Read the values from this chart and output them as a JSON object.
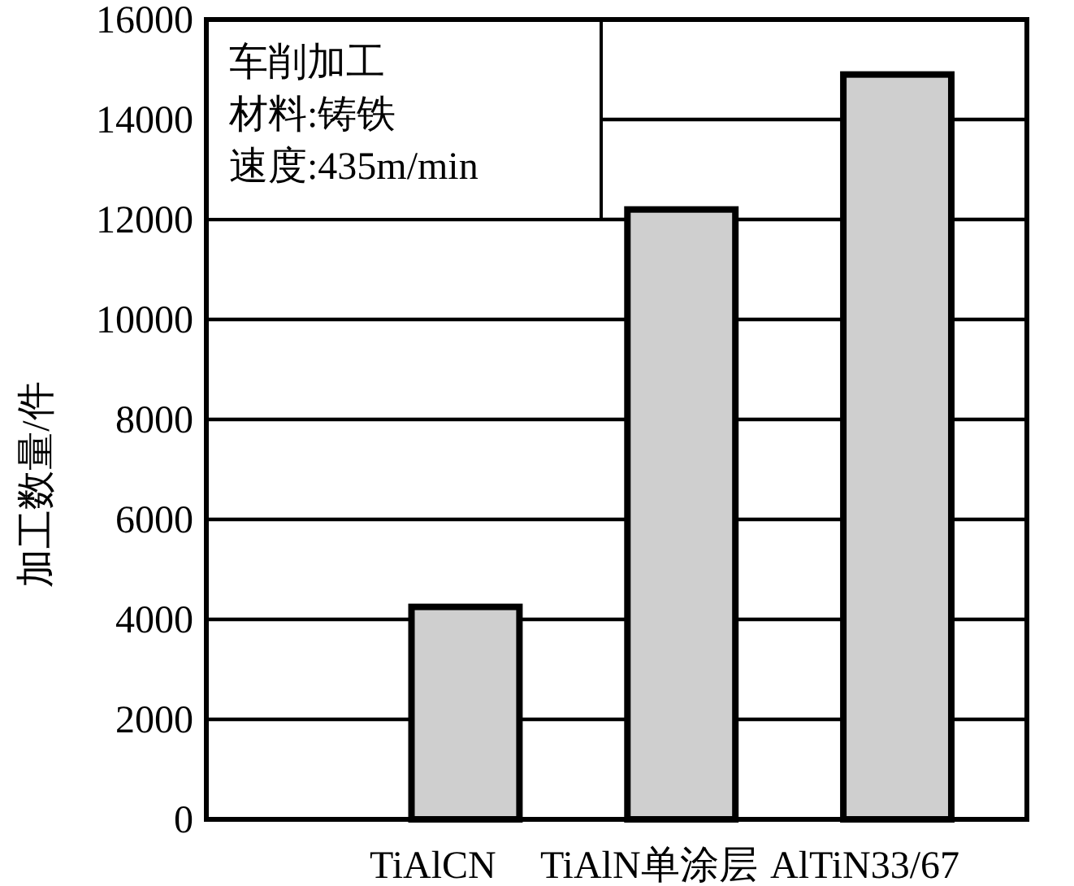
{
  "chart_data": {
    "type": "bar",
    "ylabel": "加工数量/件",
    "categories": [
      "TiAlCN",
      "TiAlN单涂层",
      "AlTiN33/67"
    ],
    "values": [
      4250,
      12200,
      14900
    ],
    "color": "#cfcfcf",
    "ylim": [
      0,
      16000
    ],
    "yticks": [
      0,
      2000,
      4000,
      6000,
      8000,
      10000,
      12000,
      14000,
      16000
    ],
    "grid": "y",
    "annotations": [
      "车削加工",
      "材料:铸铁",
      "速度:435m/min"
    ]
  }
}
